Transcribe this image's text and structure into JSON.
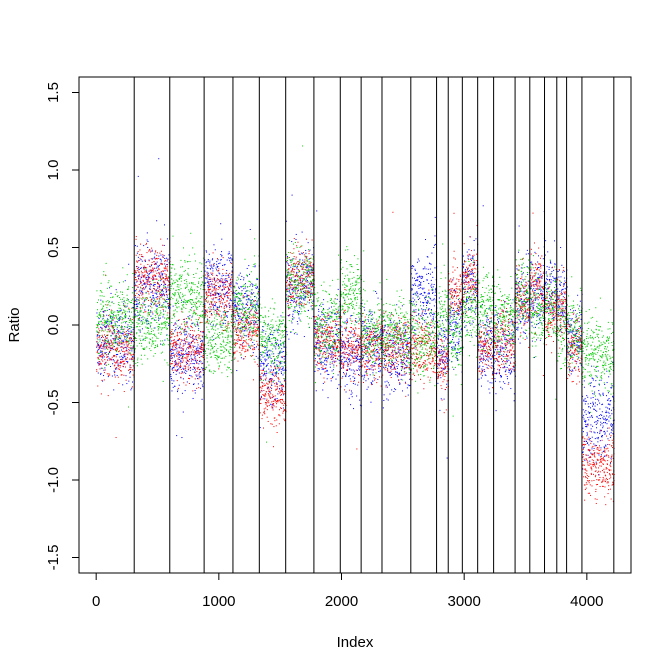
{
  "chart_data": {
    "type": "scatter",
    "title": "",
    "xlabel": "Index",
    "ylabel": "Ratio",
    "xlim": [
      -140,
      4360
    ],
    "ylim": [
      -1.6,
      1.6
    ],
    "x_ticks": [
      0,
      1000,
      2000,
      3000,
      4000
    ],
    "x_tick_labels": [
      "0",
      "1000",
      "2000",
      "3000",
      "4000"
    ],
    "y_ticks": [
      -1.5,
      -1.0,
      -0.5,
      0.0,
      0.5,
      1.0,
      1.5
    ],
    "y_tick_labels": [
      "-1.5",
      "-1.0",
      "-0.5",
      "0.0",
      "0.5",
      "1.0",
      "1.5"
    ],
    "grid": false,
    "legend": null,
    "n_points_per_series": 4220,
    "segment_boundaries": [
      310,
      600,
      880,
      1115,
      1330,
      1545,
      1775,
      1990,
      2160,
      2330,
      2565,
      2775,
      2870,
      2985,
      3110,
      3240,
      3415,
      3535,
      3655,
      3755,
      3835,
      3960,
      4220
    ],
    "series": [
      {
        "name": "",
        "color": "#0000ff",
        "segment_levels": [
          -0.1,
          0.25,
          -0.2,
          0.25,
          0.1,
          -0.25,
          0.25,
          -0.12,
          -0.2,
          -0.15,
          -0.2,
          0.2,
          -0.2,
          0.0,
          0.25,
          -0.15,
          -0.15,
          0.15,
          0.2,
          0.25,
          0.15,
          -0.1,
          -0.6
        ],
        "noise_sd": 0.13
      },
      {
        "name": "",
        "color": "#ff0000",
        "segment_levels": [
          -0.15,
          0.3,
          -0.15,
          0.2,
          -0.05,
          -0.45,
          0.3,
          -0.1,
          -0.15,
          -0.15,
          -0.15,
          -0.15,
          -0.25,
          0.2,
          0.3,
          -0.15,
          -0.1,
          0.15,
          0.25,
          0.1,
          0.1,
          -0.15,
          -0.9
        ],
        "noise_sd": 0.1
      },
      {
        "name": "",
        "color": "#00cc00",
        "segment_levels": [
          0.05,
          0.0,
          0.2,
          -0.1,
          0.1,
          -0.1,
          0.25,
          0.0,
          0.2,
          -0.05,
          -0.05,
          -0.1,
          0.05,
          -0.05,
          0.1,
          0.1,
          0.05,
          0.2,
          0.1,
          0.1,
          0.0,
          -0.05,
          -0.2
        ],
        "noise_sd": 0.12
      }
    ]
  }
}
